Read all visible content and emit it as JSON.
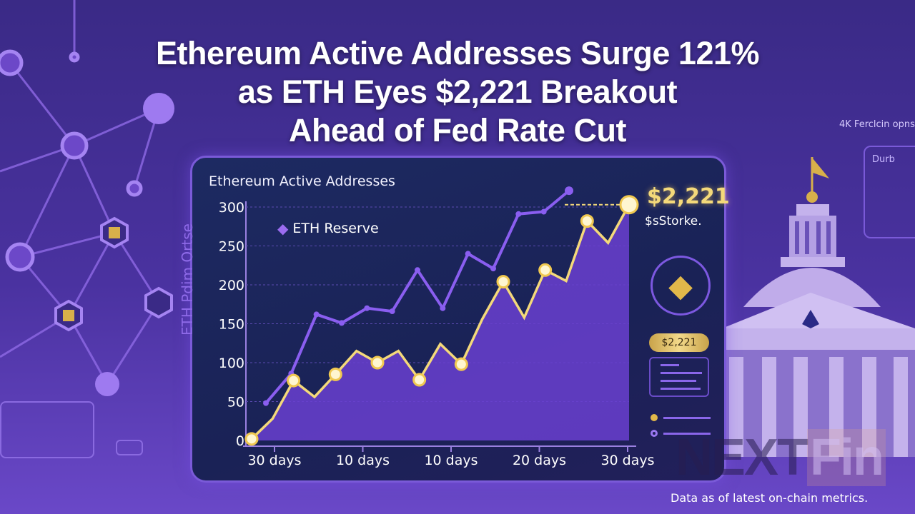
{
  "headline": {
    "line1": "Ethereum Active Addresses Surge 121%",
    "line2": "as ETH Eyes $2,221 Breakout",
    "line3": "Ahead of Fed Rate Cut"
  },
  "colors": {
    "background": "#4a32a0",
    "panel": "#1d2a62",
    "gold": "#f4d97a",
    "purple_line": "#8a5ef0",
    "area": "#6a3fd0"
  },
  "chart_data": {
    "type": "line",
    "title": "Ethereum Active Addresses",
    "ylabel": "ETH Pdim Ortse",
    "xlabel": "",
    "ylim": [
      0,
      300
    ],
    "yticks": [
      0,
      50,
      100,
      150,
      200,
      250,
      300
    ],
    "xtick_labels": [
      "30 days",
      "10 days",
      "10 days",
      "20 days",
      "30 days"
    ],
    "grid": true,
    "legend_placement": "top-left",
    "series": [
      {
        "name": "ETH Reserve",
        "color": "#8a5ef0",
        "values": [
          48,
          86,
          162,
          151,
          170,
          166,
          219,
          170,
          240,
          221,
          291,
          294,
          321
        ]
      },
      {
        "color": "#f4d97a",
        "area": true,
        "values": [
          2,
          28,
          77,
          56,
          85,
          115,
          100,
          115,
          78,
          124,
          98,
          156,
          204,
          158,
          219,
          205,
          282,
          254,
          303
        ]
      }
    ],
    "annotations": {
      "price": "$2,221",
      "price_sub": "$sStorke.",
      "pill": "$2,221"
    }
  },
  "sidebar": {
    "top_label": "4K Ferclcin opns",
    "box_label": "Durb"
  },
  "icons": [
    "ethereum-icon",
    "capitol-building-icon",
    "network-nodes-icon"
  ],
  "watermark": {
    "part1": "NEXT",
    "part2": "Fin"
  },
  "caption": "Data as of latest on-chain metrics."
}
